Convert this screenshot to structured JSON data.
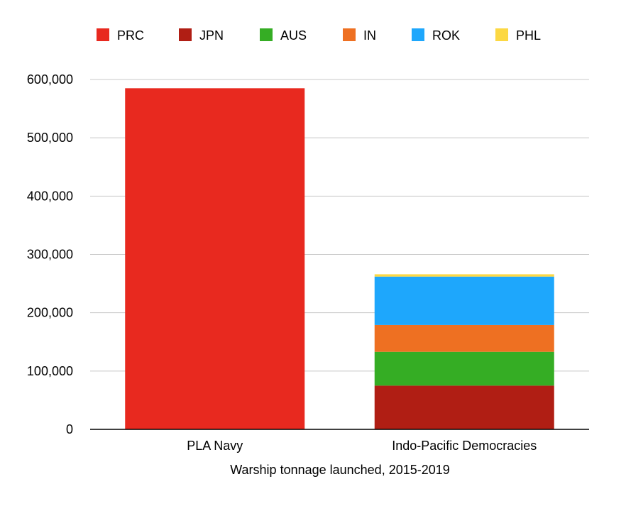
{
  "chart_data": {
    "type": "bar",
    "stacked": true,
    "categories": [
      "PLA Navy",
      "Indo-Pacific Democracies"
    ],
    "series": [
      {
        "name": "PRC",
        "color": "#E8291F",
        "values": [
          585000,
          0
        ]
      },
      {
        "name": "JPN",
        "color": "#B01E14",
        "values": [
          0,
          75000
        ]
      },
      {
        "name": "AUS",
        "color": "#35AD24",
        "values": [
          0,
          58000
        ]
      },
      {
        "name": "IN",
        "color": "#EE7022",
        "values": [
          0,
          46000
        ]
      },
      {
        "name": "ROK",
        "color": "#1EA7FC",
        "values": [
          0,
          83000
        ]
      },
      {
        "name": "PHL",
        "color": "#FCD843",
        "values": [
          0,
          4000
        ]
      }
    ],
    "ylim": [
      0,
      600000
    ],
    "yticks": [
      0,
      100000,
      200000,
      300000,
      400000,
      500000,
      600000
    ],
    "ytick_labels": [
      "0",
      "100,000",
      "200,000",
      "300,000",
      "400,000",
      "500,000",
      "600,000"
    ],
    "xlabel": "Warship tonnage launched, 2015-2019",
    "ylabel": "",
    "grid": true,
    "legend_position": "top"
  }
}
